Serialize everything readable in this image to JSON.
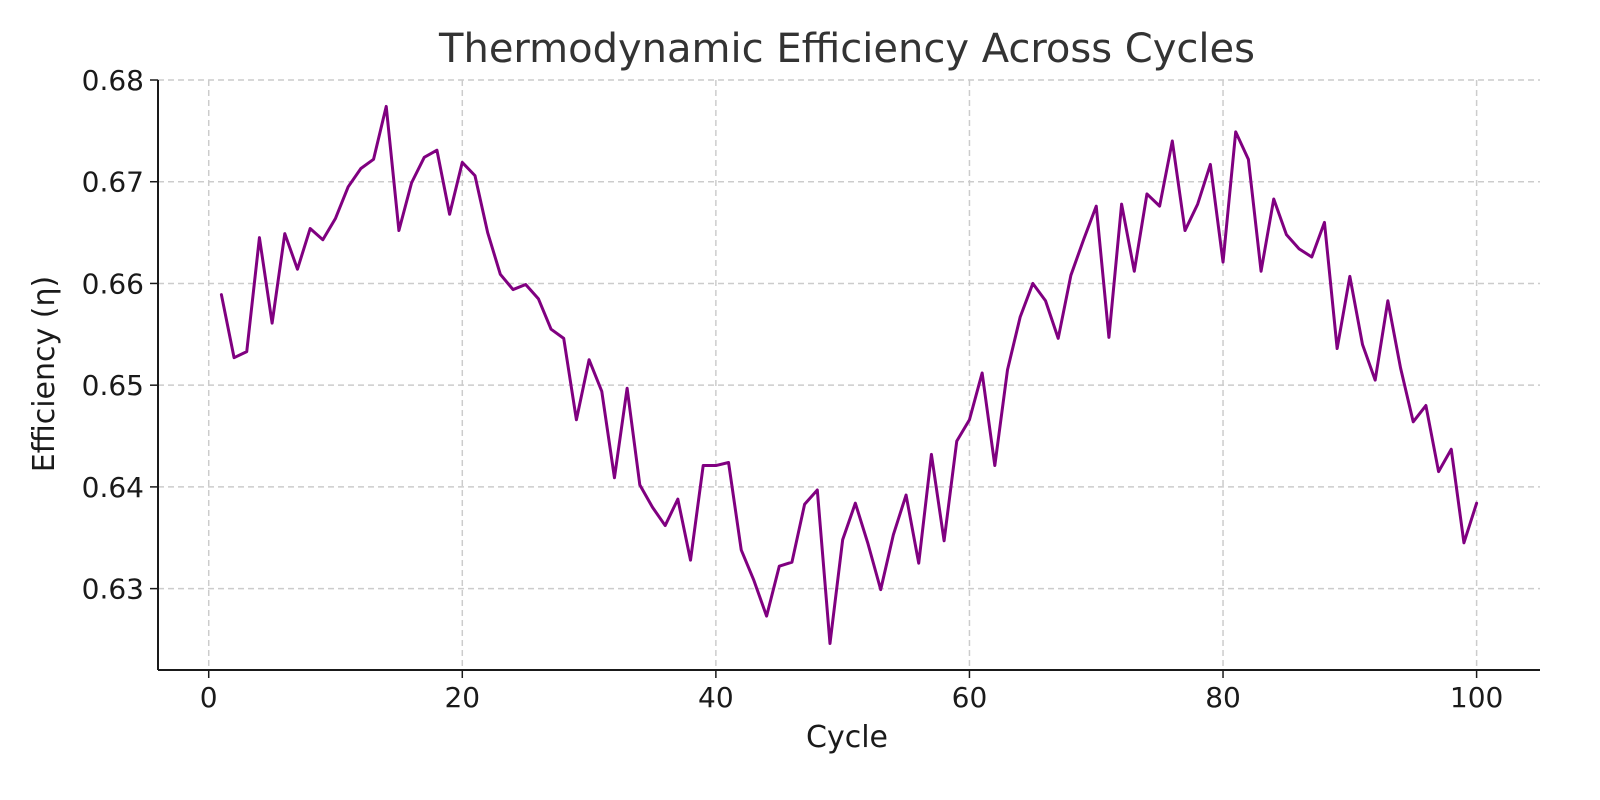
{
  "chart_data": {
    "type": "line",
    "title": "Thermodynamic Efficiency Across Cycles",
    "xlabel": "Cycle",
    "ylabel": "Efficiency (η)",
    "xlim": [
      -4,
      105
    ],
    "ylim": [
      0.622,
      0.68
    ],
    "x_ticks": [
      0,
      20,
      40,
      60,
      80,
      100
    ],
    "y_ticks": [
      0.63,
      0.64,
      0.65,
      0.66,
      0.67,
      0.68
    ],
    "x_tick_labels": [
      "0",
      "20",
      "40",
      "60",
      "80",
      "100"
    ],
    "y_tick_labels": [
      "0.63",
      "0.64",
      "0.65",
      "0.66",
      "0.67",
      "0.68"
    ],
    "grid": true,
    "series": [
      {
        "color": "#800080",
        "x": [
          1,
          2,
          3,
          4,
          5,
          6,
          7,
          8,
          9,
          10,
          11,
          12,
          13,
          14,
          15,
          16,
          17,
          18,
          19,
          20,
          21,
          22,
          23,
          24,
          25,
          26,
          27,
          28,
          29,
          30,
          31,
          32,
          33,
          34,
          35,
          36,
          37,
          38,
          39,
          40,
          41,
          42,
          43,
          44,
          45,
          46,
          47,
          48,
          49,
          50,
          51,
          52,
          53,
          54,
          55,
          56,
          57,
          58,
          59,
          60,
          61,
          62,
          63,
          64,
          65,
          66,
          67,
          68,
          69,
          70,
          71,
          72,
          73,
          74,
          75,
          76,
          77,
          78,
          79,
          80,
          81,
          82,
          83,
          84,
          85,
          86,
          87,
          88,
          89,
          90,
          91,
          92,
          93,
          94,
          95,
          96,
          97,
          98,
          99,
          100
        ],
        "y": [
          0.6589,
          0.6527,
          0.6533,
          0.6645,
          0.6561,
          0.6649,
          0.6614,
          0.6654,
          0.6643,
          0.6664,
          0.6695,
          0.6713,
          0.6722,
          0.6774,
          0.6652,
          0.6699,
          0.6724,
          0.6731,
          0.6668,
          0.6719,
          0.6706,
          0.665,
          0.6609,
          0.6594,
          0.6599,
          0.6585,
          0.6555,
          0.6546,
          0.6466,
          0.6525,
          0.6494,
          0.6409,
          0.6497,
          0.6402,
          0.638,
          0.6362,
          0.6388,
          0.6328,
          0.6421,
          0.6421,
          0.6424,
          0.6338,
          0.6308,
          0.6273,
          0.6322,
          0.6326,
          0.6383,
          0.6397,
          0.6246,
          0.6348,
          0.6384,
          0.6344,
          0.6299,
          0.6353,
          0.6392,
          0.6325,
          0.6432,
          0.6347,
          0.6445,
          0.6466,
          0.6512,
          0.6421,
          0.6515,
          0.6567,
          0.66,
          0.6583,
          0.6546,
          0.6608,
          0.6643,
          0.6676,
          0.6547,
          0.6678,
          0.6612,
          0.6688,
          0.6676,
          0.674,
          0.6652,
          0.6678,
          0.6717,
          0.6621,
          0.6749,
          0.6722,
          0.6612,
          0.6683,
          0.6648,
          0.6634,
          0.6626,
          0.666,
          0.6536,
          0.6607,
          0.654,
          0.6505,
          0.6583,
          0.6517,
          0.6464,
          0.648,
          0.6415,
          0.6437,
          0.6345,
          0.6384
        ]
      }
    ]
  }
}
